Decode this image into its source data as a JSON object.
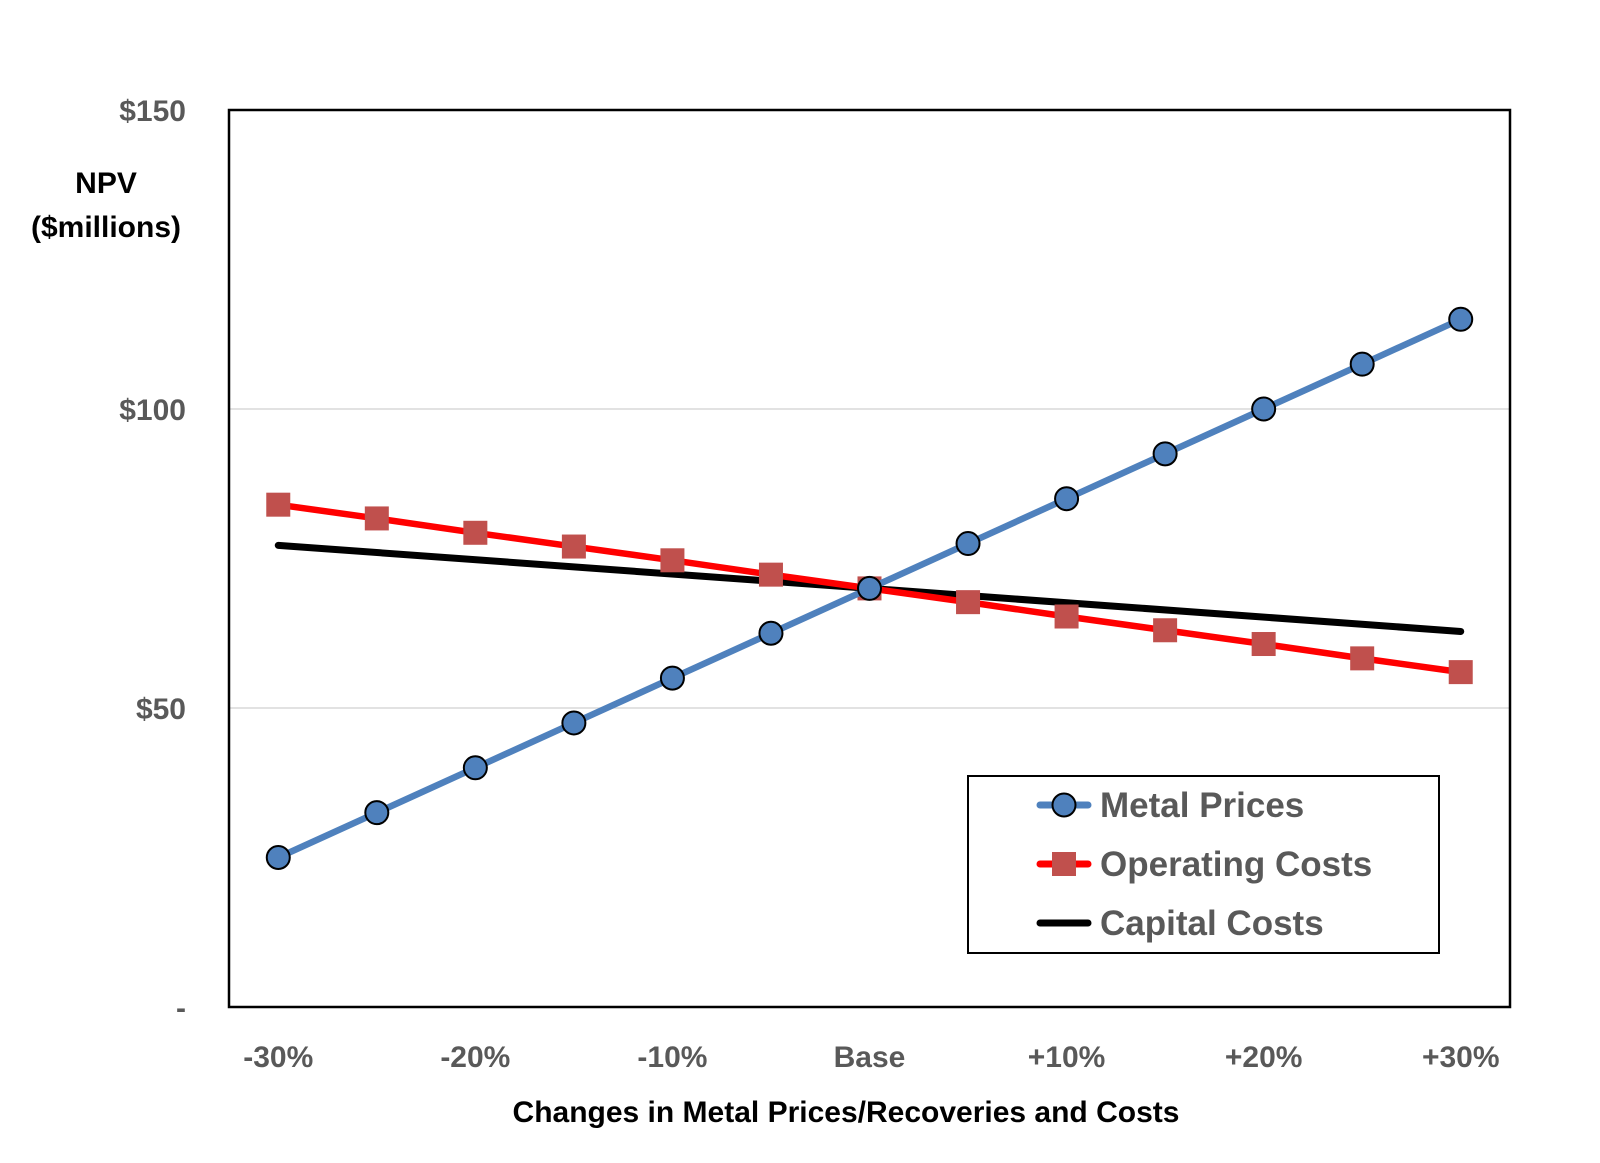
{
  "chart_data": {
    "type": "line",
    "title": "",
    "xlabel": "Changes in Metal Prices/Recoveries and Costs",
    "ylabel": [
      "NPV",
      "($millions)"
    ],
    "x": [
      -30,
      -25,
      -20,
      -15,
      -10,
      -5,
      0,
      5,
      10,
      15,
      20,
      25,
      30
    ],
    "xlim": [
      -32.5,
      32.5
    ],
    "ylim": [
      0,
      150
    ],
    "x_ticks": [
      {
        "value": -30,
        "label": "-30%"
      },
      {
        "value": -20,
        "label": "-20%"
      },
      {
        "value": -10,
        "label": "-10%"
      },
      {
        "value": 0,
        "label": "Base"
      },
      {
        "value": 10,
        "label": "+10%"
      },
      {
        "value": 20,
        "label": "+20%"
      },
      {
        "value": 30,
        "label": "+30%"
      }
    ],
    "y_ticks": [
      {
        "value": 0,
        "label": "-"
      },
      {
        "value": 50,
        "label": "$50"
      },
      {
        "value": 100,
        "label": "$100"
      },
      {
        "value": 150,
        "label": "$150"
      }
    ],
    "grid": true,
    "legend_position": "bottom-right",
    "series": [
      {
        "name": "Metal Prices",
        "color": "#4F81BD",
        "marker": "circle",
        "marker_fill": "#4F81BD",
        "values": [
          25,
          32.5,
          40,
          47.5,
          55,
          62.5,
          70,
          77.5,
          85,
          92.5,
          100,
          107.5,
          115
        ]
      },
      {
        "name": "Operating Costs",
        "color": "#FF0000",
        "marker": "square",
        "marker_fill": "#C0504D",
        "values": [
          84,
          81.7,
          79.3,
          77,
          74.7,
          72.3,
          70,
          67.7,
          65.3,
          63,
          60.7,
          58.3,
          56
        ]
      },
      {
        "name": "Capital Costs",
        "color": "#000000",
        "marker": "none",
        "marker_fill": "",
        "values": [
          77.2,
          null,
          null,
          null,
          null,
          null,
          70,
          null,
          null,
          null,
          null,
          null,
          62.8
        ]
      }
    ]
  }
}
